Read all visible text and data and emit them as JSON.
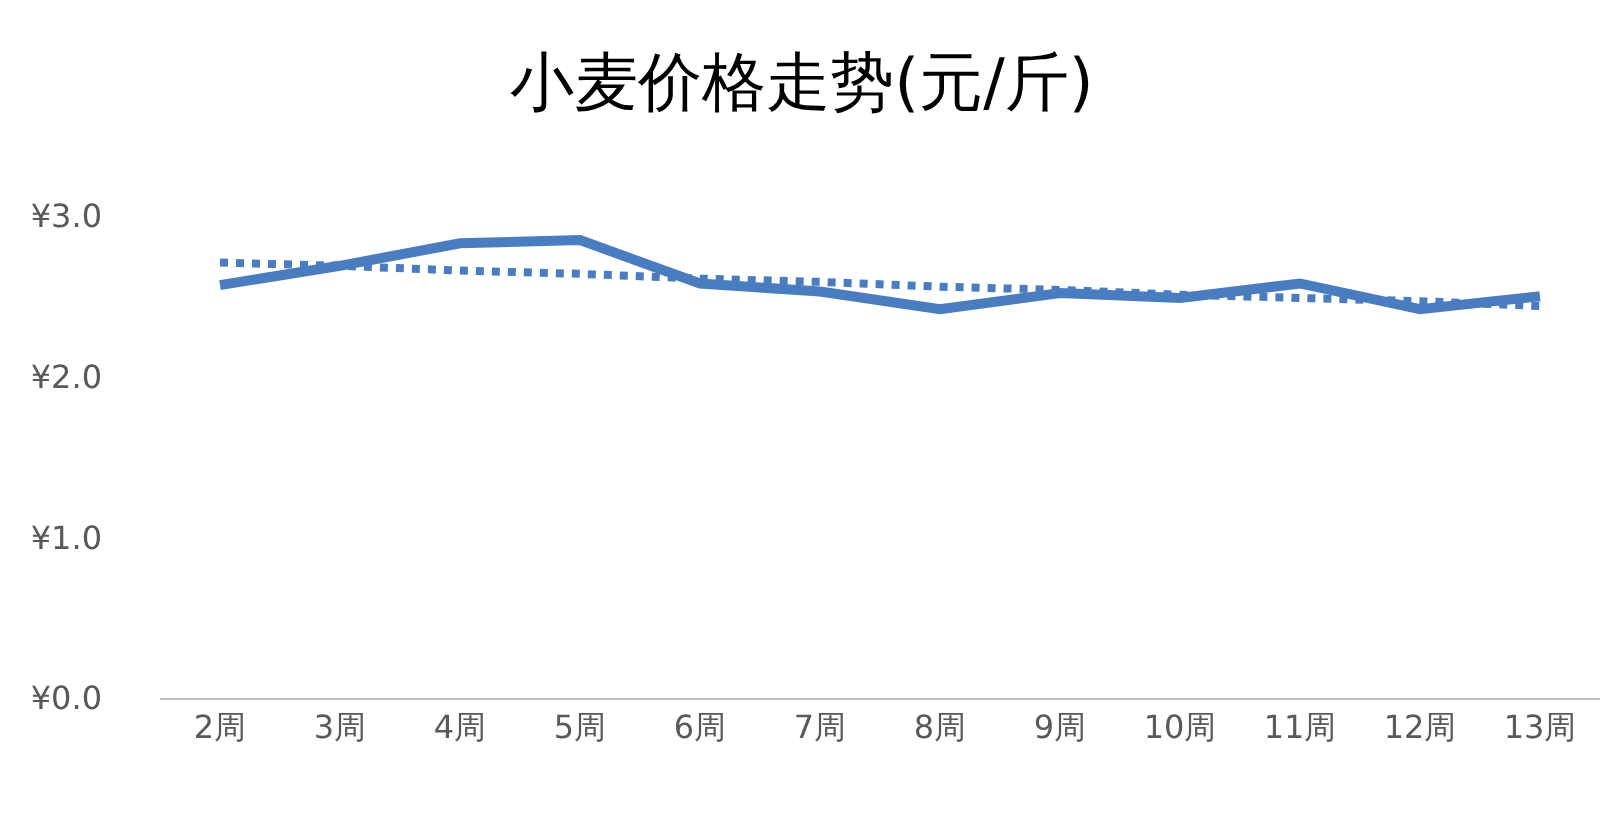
{
  "chart_data": {
    "type": "line",
    "title": "小麦价格走势(元/斤)",
    "categories": [
      "2周",
      "3周",
      "4周",
      "5周",
      "6周",
      "7周",
      "8周",
      "9周",
      "10周",
      "11周",
      "12周",
      "13周"
    ],
    "series": [
      {
        "color": "#4a7dbf",
        "line_style": "solid",
        "values": [
          2.57,
          2.69,
          2.83,
          2.85,
          2.58,
          2.53,
          2.42,
          2.52,
          2.49,
          2.58,
          2.42,
          2.5
        ]
      },
      {
        "color": "#4a7dbf",
        "line_style": "dotted",
        "values": [
          2.71,
          2.69,
          2.66,
          2.64,
          2.61,
          2.59,
          2.56,
          2.54,
          2.51,
          2.49,
          2.47,
          2.44
        ]
      }
    ],
    "ylim": [
      0,
      3
    ],
    "yticks": [
      {
        "value": 0,
        "label": "¥0.0"
      },
      {
        "value": 1,
        "label": "¥1.0"
      },
      {
        "value": 2,
        "label": "¥2.0"
      },
      {
        "value": 3,
        "label": "¥3.0"
      }
    ],
    "grid": false,
    "marker": "none"
  }
}
